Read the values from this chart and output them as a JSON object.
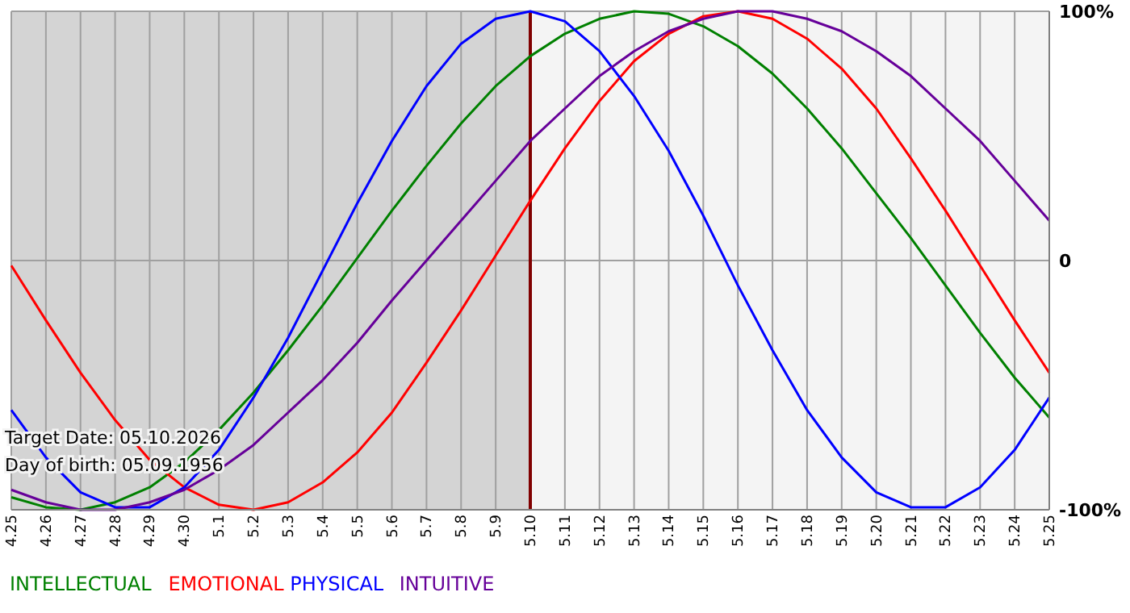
{
  "chart_data": {
    "type": "line",
    "categories": [
      "4.25",
      "4.26",
      "4.27",
      "4.28",
      "4.29",
      "4.30",
      "5.1",
      "5.2",
      "5.3",
      "5.4",
      "5.5",
      "5.6",
      "5.7",
      "5.8",
      "5.9",
      "5.10",
      "5.11",
      "5.12",
      "5.13",
      "5.14",
      "5.15",
      "5.16",
      "5.17",
      "5.18",
      "5.19",
      "5.20",
      "5.21",
      "5.22",
      "5.23",
      "5.24",
      "5.25"
    ],
    "series": [
      {
        "name": "INTELLECTUAL",
        "color": "#008000",
        "values": [
          -95,
          -99,
          -100,
          -97,
          -91,
          -81,
          -68,
          -53,
          -36,
          -18,
          1,
          20,
          38,
          55,
          70,
          82,
          91,
          97,
          100,
          99,
          94,
          86,
          75,
          61,
          45,
          27,
          9,
          -10,
          -29,
          -47,
          -63
        ]
      },
      {
        "name": "EMOTIONAL",
        "color": "#ff0000",
        "values": [
          -2,
          -24,
          -45,
          -64,
          -80,
          -91,
          -98,
          -100,
          -97,
          -89,
          -77,
          -61,
          -41,
          -20,
          2,
          24,
          45,
          64,
          80,
          91,
          98,
          100,
          97,
          89,
          77,
          61,
          41,
          20,
          -2,
          -24,
          -45
        ]
      },
      {
        "name": "PHYSICAL",
        "color": "#0000ff",
        "values": [
          -60,
          -79,
          -93,
          -99,
          -99,
          -91,
          -76,
          -55,
          -31,
          -4,
          23,
          48,
          70,
          87,
          97,
          100,
          96,
          84,
          66,
          44,
          18,
          -10,
          -36,
          -60,
          -79,
          -93,
          -99,
          -99,
          -91,
          -76,
          -55
        ]
      },
      {
        "name": "INTUITIVE",
        "color": "#660099",
        "values": [
          -92,
          -97,
          -100,
          -100,
          -97,
          -92,
          -84,
          -74,
          -61,
          -48,
          -33,
          -16,
          0,
          16,
          32,
          48,
          61,
          74,
          84,
          92,
          97,
          100,
          100,
          97,
          92,
          84,
          74,
          61,
          48,
          32,
          16
        ]
      }
    ],
    "ylim": [
      -100,
      100
    ],
    "yticks": [
      {
        "value": 100,
        "label": "100%"
      },
      0,
      {
        "value": -100,
        "label": "-100%"
      }
    ],
    "grid": true,
    "legend": "bottom",
    "line_style": "solid",
    "marker": "none",
    "ref_lines": [
      {
        "axis": "x",
        "value": "5.10",
        "color": "#800000"
      }
    ],
    "bands": [
      {
        "axis": "x",
        "from": "4.25",
        "to": "5.10",
        "color": "#d4d4d4"
      }
    ],
    "annotations": [
      "Target Date: 05.10.2026",
      "Day of birth: 05.09.1956"
    ]
  }
}
